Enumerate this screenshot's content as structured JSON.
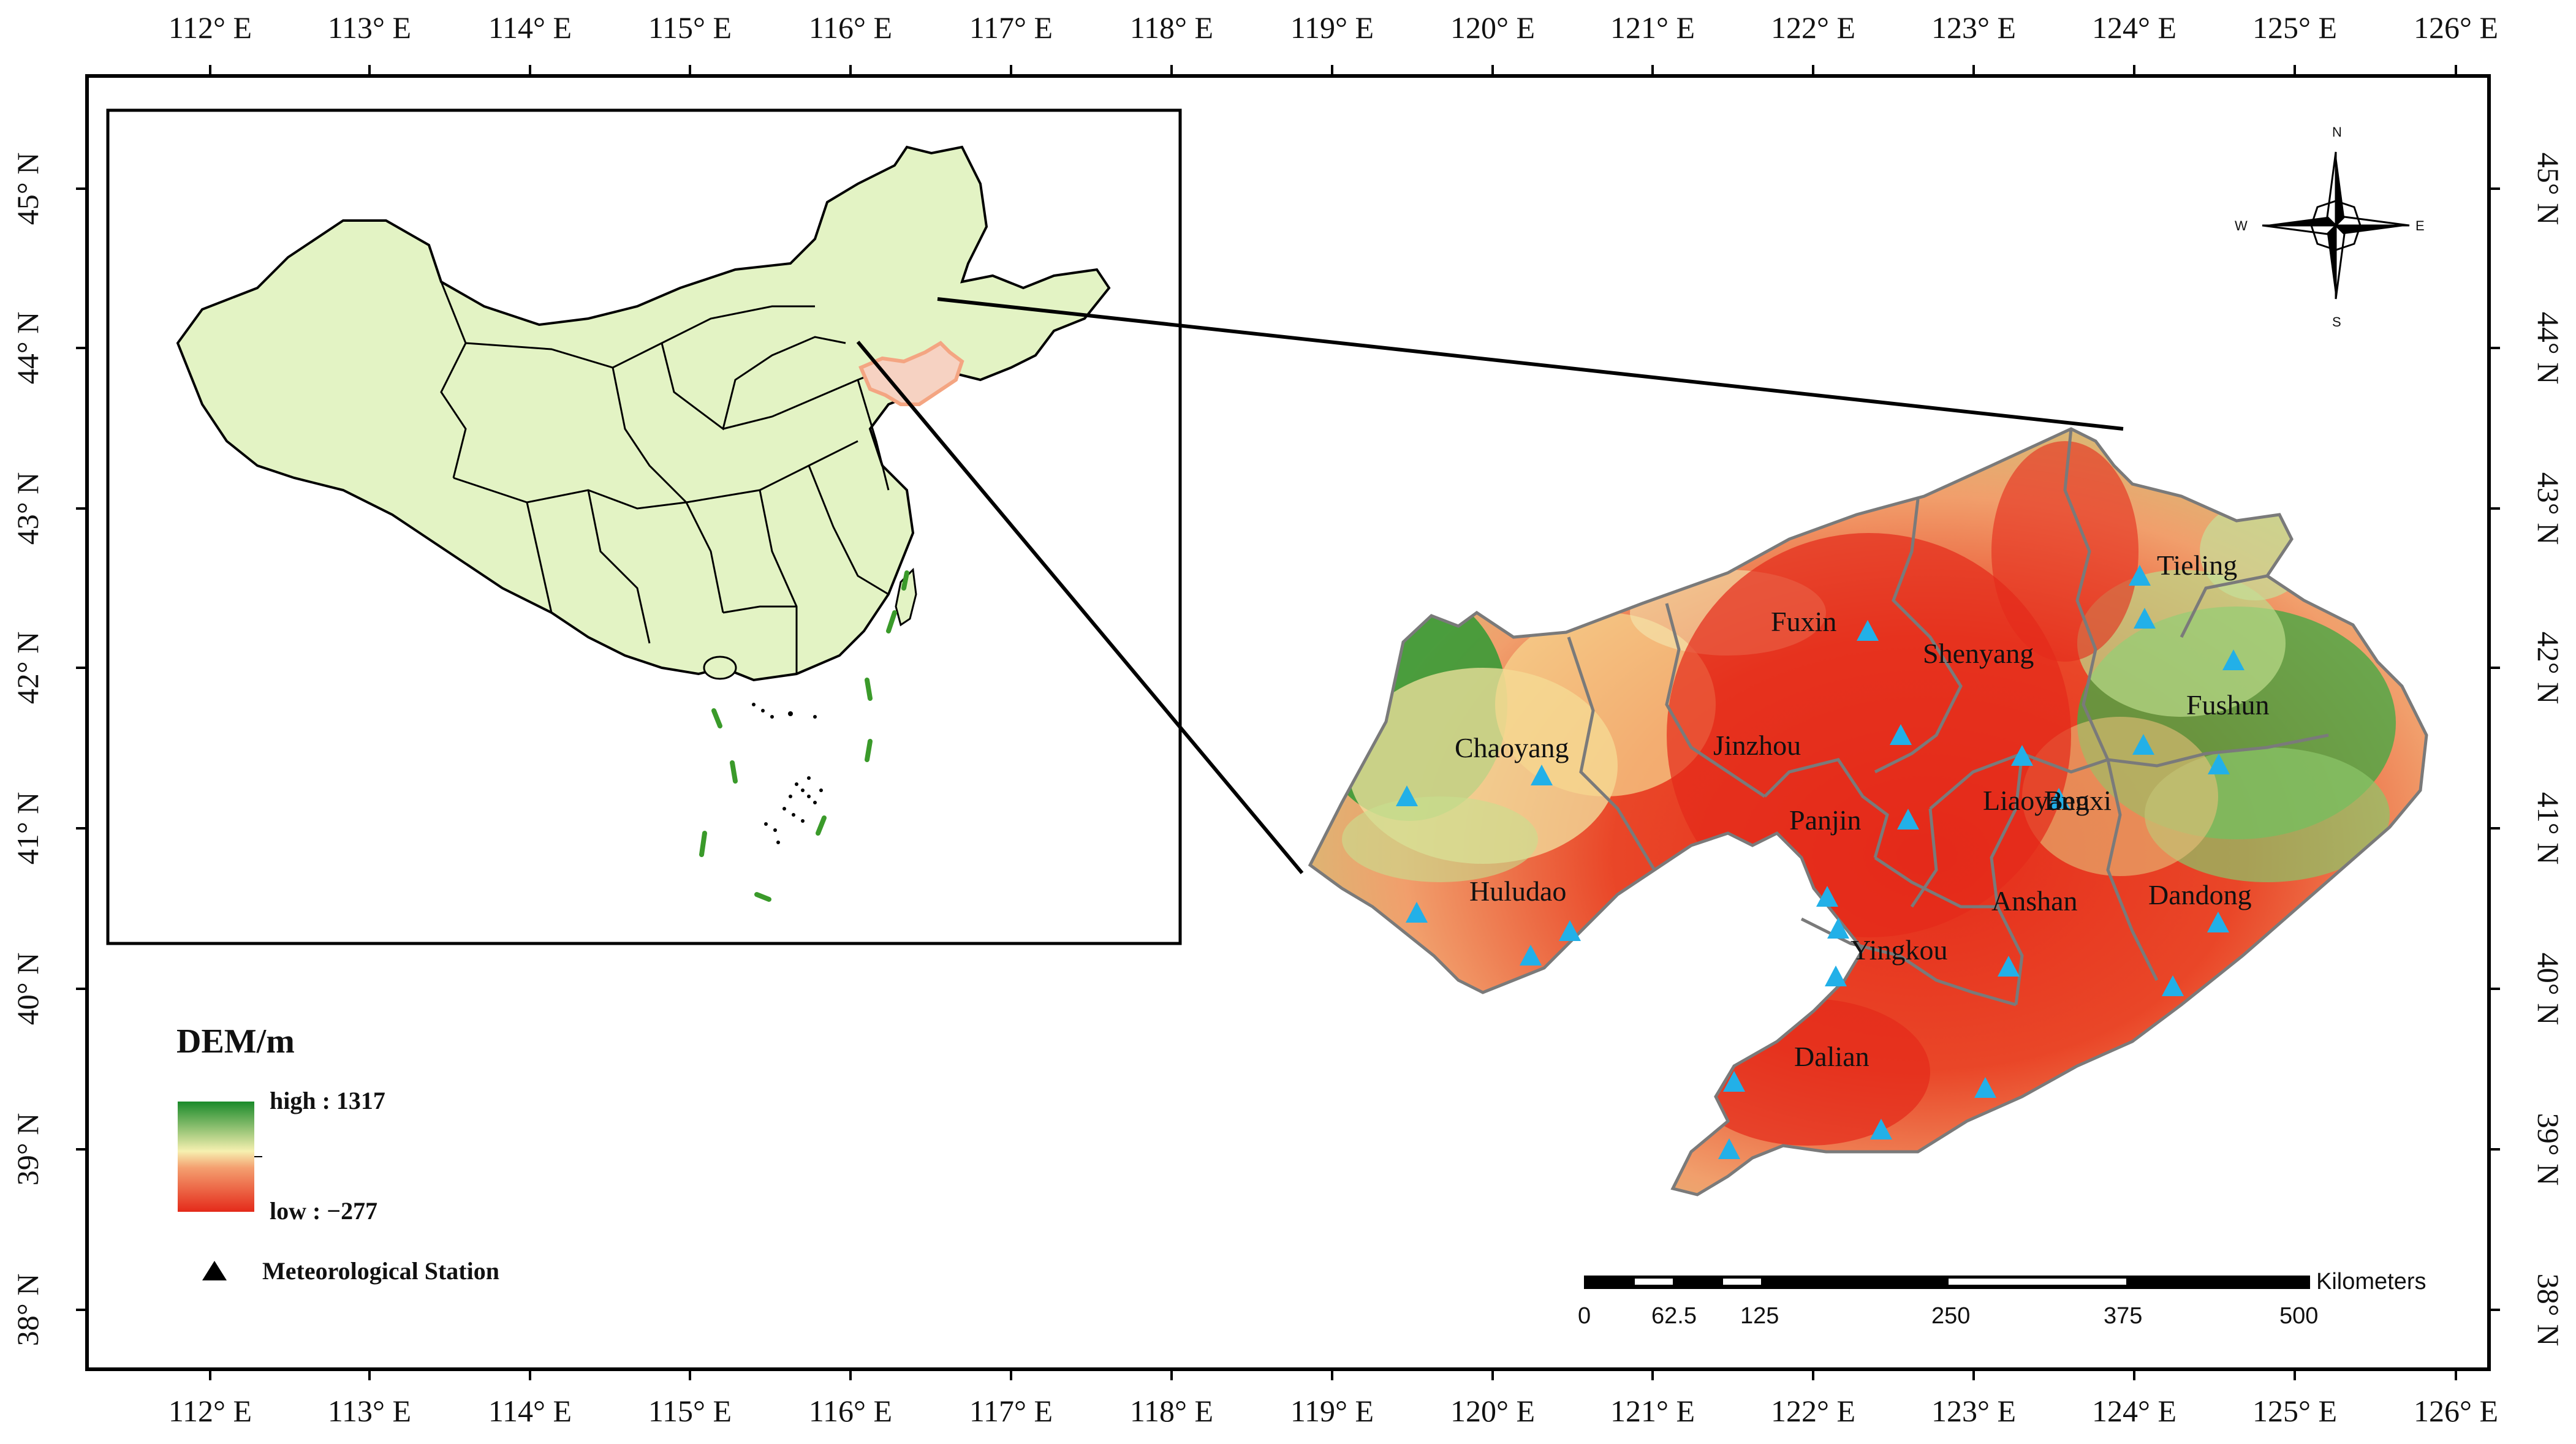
{
  "axes": {
    "lon_labels": [
      "112° E",
      "113° E",
      "114° E",
      "115° E",
      "116° E",
      "117° E",
      "118° E",
      "119° E",
      "120° E",
      "121° E",
      "122° E",
      "123° E",
      "124° E",
      "125° E",
      "126° E"
    ],
    "lat_labels": [
      "45° N",
      "44° N",
      "43° N",
      "42° N",
      "41° N",
      "40° N",
      "39° N",
      "38° N"
    ]
  },
  "cities": [
    {
      "name": "Tieling"
    },
    {
      "name": "Fuxin"
    },
    {
      "name": "Shenyang"
    },
    {
      "name": "Fushun"
    },
    {
      "name": "Chaoyang"
    },
    {
      "name": "Jinzhou"
    },
    {
      "name": "Panjin"
    },
    {
      "name": "Liaoyang"
    },
    {
      "name": "Benxi"
    },
    {
      "name": "Huludao"
    },
    {
      "name": "Anshan"
    },
    {
      "name": "Dandong"
    },
    {
      "name": "Yingkou"
    },
    {
      "name": "Dalian"
    }
  ],
  "legend": {
    "title": "DEM/m",
    "high_label": "high : 1317",
    "low_label": "low : −277",
    "station_label": "Meteorological Station",
    "colors": {
      "high": "#1a8a2a",
      "mid": "#f6f0b0",
      "low": "#e42a1a"
    }
  },
  "scale_bar": {
    "unit": "Kilometers",
    "labels": [
      "0",
      "62.5",
      "125",
      "250",
      "375",
      "500"
    ]
  },
  "compass": {
    "n": "N",
    "s": "S",
    "e": "E",
    "w": "W"
  },
  "colors": {
    "china_fill": "#e3f3c4",
    "highlight_outline": "#f4a582",
    "station": "#22b0e8",
    "boundary": "#7a7a7a"
  }
}
